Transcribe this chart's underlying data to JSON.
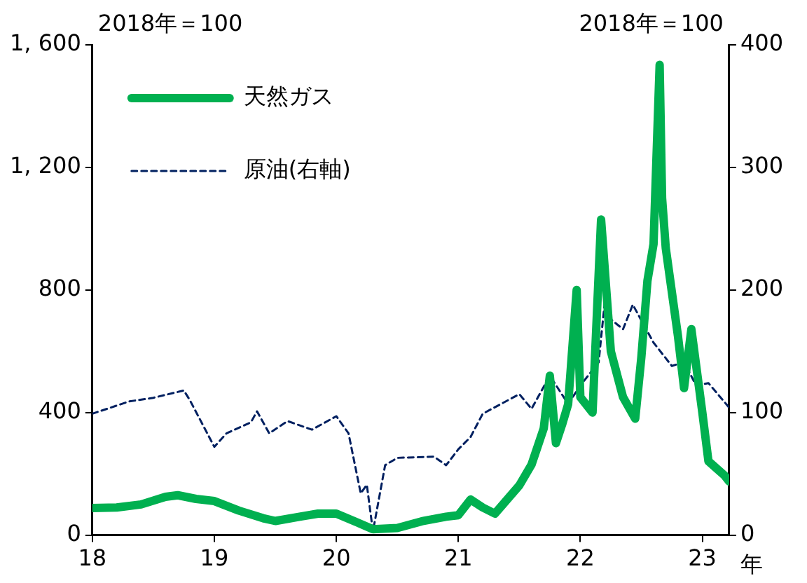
{
  "chart_data": {
    "type": "line",
    "ylabel": "2018年＝100",
    "y2label": "2018年＝100",
    "xlabel": "年",
    "xlim": [
      18,
      23.22
    ],
    "xticks": [
      18,
      19,
      20,
      21,
      22,
      23
    ],
    "ylim": [
      0,
      1600
    ],
    "yticks": [
      0,
      400,
      800,
      {
        "value": 1200,
        "label": "1, 200"
      },
      {
        "value": 1600,
        "label": "1, 600"
      }
    ],
    "y2lim": [
      0,
      400
    ],
    "y2ticks": [
      0,
      100,
      200,
      300,
      400
    ],
    "grid": false,
    "legend": "top left",
    "series": [
      {
        "name": "天然ガス",
        "color": "#00b050",
        "line_style": "solid",
        "x": [
          18.0,
          18.2,
          18.4,
          18.6,
          18.7,
          18.85,
          19.0,
          19.2,
          19.4,
          19.5,
          19.7,
          19.85,
          20.0,
          20.15,
          20.3,
          20.5,
          20.7,
          20.9,
          21.0,
          21.1,
          21.2,
          21.3,
          21.5,
          21.6,
          21.7,
          21.75,
          21.8,
          21.85,
          21.9,
          21.97,
          22.0,
          22.1,
          22.17,
          22.25,
          22.35,
          22.45,
          22.5,
          22.55,
          22.6,
          22.65,
          22.67,
          22.7,
          22.8,
          22.85,
          22.91,
          23.0,
          23.05,
          23.18,
          23.22
        ],
        "values": [
          88,
          90,
          100,
          125,
          130,
          118,
          111,
          80,
          55,
          46,
          60,
          70,
          70,
          45,
          19,
          23,
          45,
          60,
          65,
          116,
          90,
          70,
          162,
          230,
          348,
          520,
          300,
          360,
          427,
          800,
          450,
          400,
          1030,
          600,
          450,
          380,
          580,
          830,
          950,
          1535,
          1100,
          937,
          650,
          480,
          672,
          400,
          241,
          195,
          175
        ]
      },
      {
        "name": "原油(右軸)",
        "color": "#002060",
        "axis": "y2",
        "line_style": "dashed",
        "x": [
          18.0,
          18.3,
          18.5,
          18.75,
          18.8,
          19.0,
          19.1,
          19.3,
          19.35,
          19.45,
          19.6,
          19.8,
          20.0,
          20.1,
          20.2,
          20.25,
          20.3,
          20.4,
          20.5,
          20.8,
          20.9,
          21.0,
          21.1,
          21.2,
          21.5,
          21.6,
          21.75,
          21.9,
          22.0,
          22.15,
          22.2,
          22.25,
          22.35,
          22.43,
          22.6,
          22.75,
          22.85,
          22.95,
          23.05,
          23.22
        ],
        "values": [
          99,
          109,
          112,
          118,
          110,
          72,
          83,
          92,
          101,
          83,
          93,
          86,
          97,
          83,
          34,
          41,
          3,
          57,
          63,
          64,
          57,
          70,
          80,
          99,
          115,
          103,
          130,
          107,
          122,
          141,
          190,
          176,
          168,
          188,
          157,
          138,
          141,
          122,
          124,
          104
        ]
      }
    ]
  }
}
